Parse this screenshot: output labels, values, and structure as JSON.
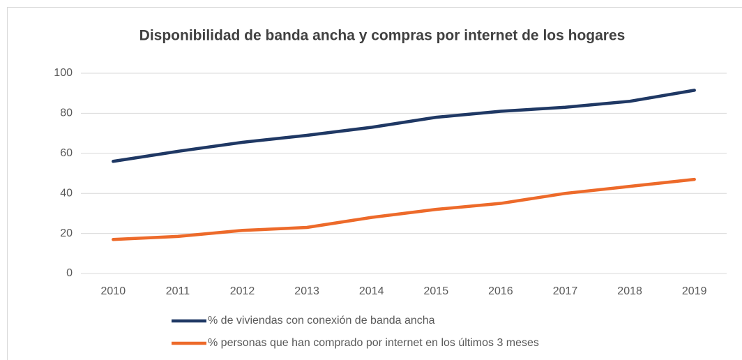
{
  "chart_data": {
    "type": "line",
    "title": "Disponibilidad  de banda ancha y compras por internet de los hogares",
    "categories": [
      "2010",
      "2011",
      "2012",
      "2013",
      "2014",
      "2015",
      "2016",
      "2017",
      "2018",
      "2019"
    ],
    "series": [
      {
        "name": "% de viviendas con conexión de banda ancha",
        "color": "#1f3864",
        "values": [
          56,
          61,
          65.5,
          69,
          73,
          78,
          81,
          83,
          86,
          91.5
        ]
      },
      {
        "name": "% personas que han comprado por internet en los últimos 3 meses",
        "color": "#ed6a2a",
        "values": [
          17,
          18.5,
          21.5,
          23,
          28,
          32,
          35,
          40,
          43.5,
          47
        ]
      }
    ],
    "ylim": [
      0,
      100
    ],
    "yticks": [
      0,
      20,
      40,
      60,
      80,
      100
    ],
    "grid": true,
    "legend": "bottom"
  }
}
